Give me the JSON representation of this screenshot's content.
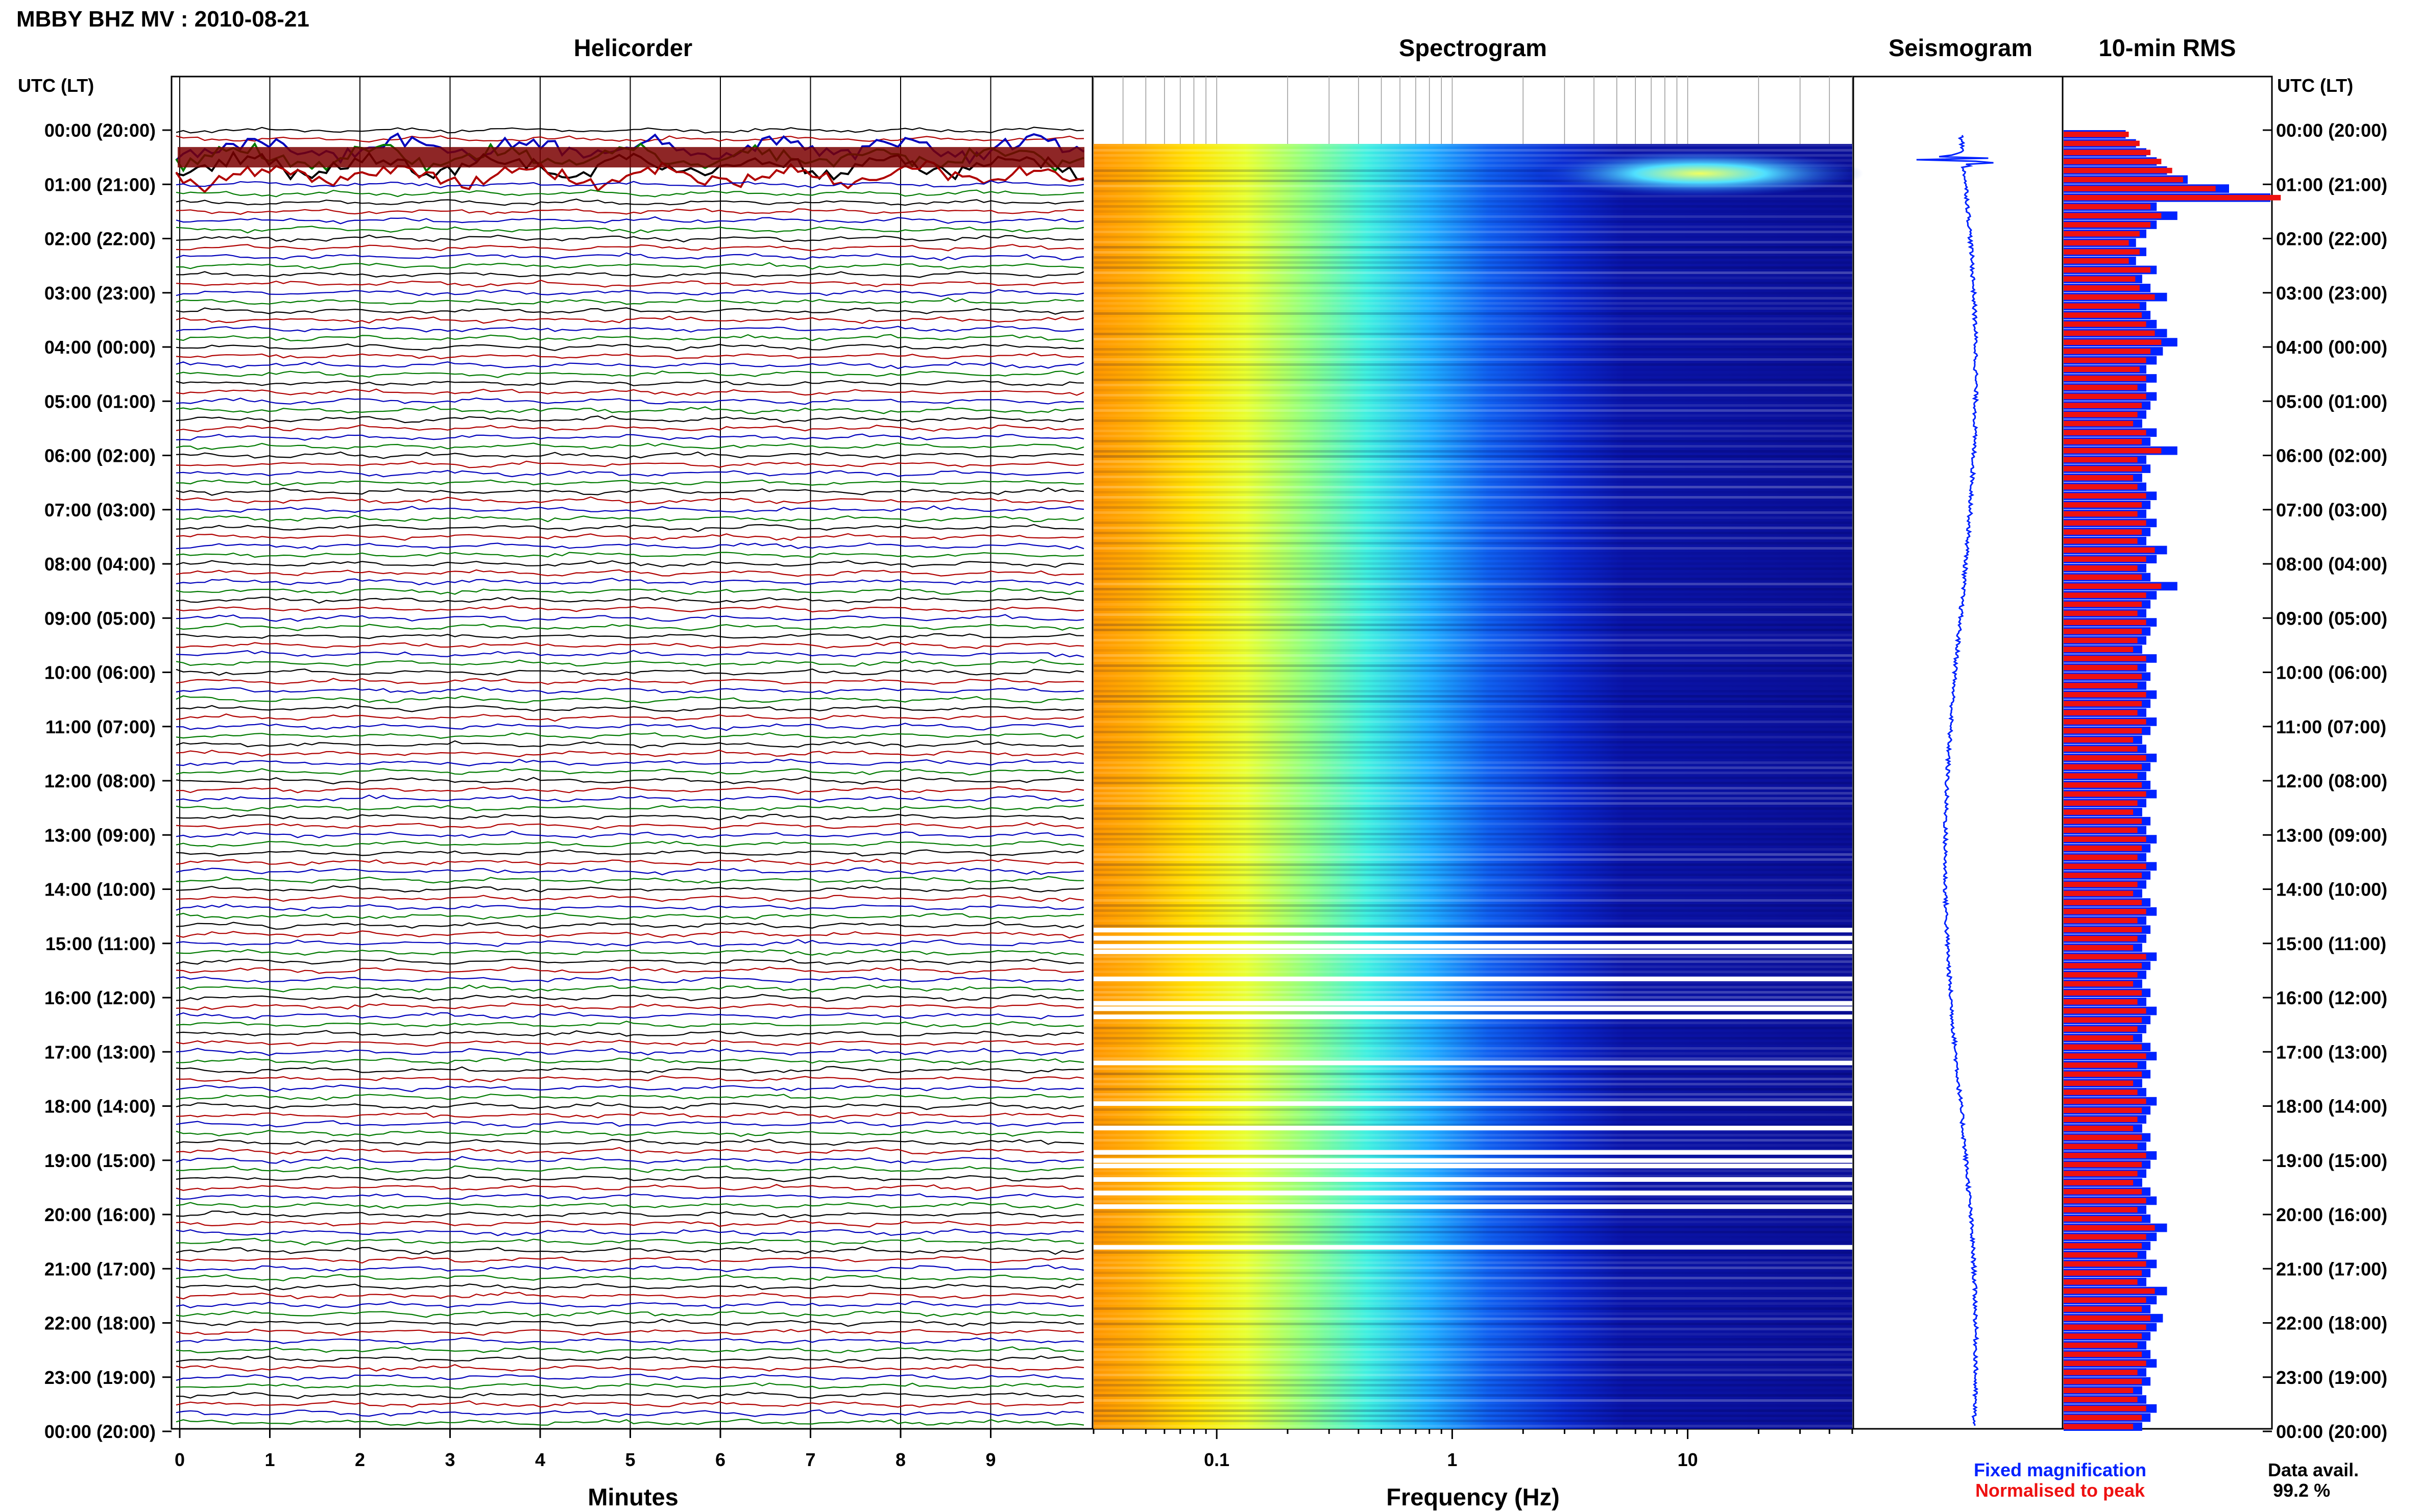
{
  "title": "MBBY BHZ MV : 2010-08-21",
  "panels": {
    "helicorder": "Helicorder",
    "spectrogram": "Spectrogram",
    "seismogram": "Seismogram",
    "rms": "10-min RMS"
  },
  "time_axis_label": "UTC (LT)",
  "time_labels": [
    "00:00 (20:00)",
    "01:00 (21:00)",
    "02:00 (22:00)",
    "03:00 (23:00)",
    "04:00 (00:00)",
    "05:00 (01:00)",
    "06:00 (02:00)",
    "07:00 (03:00)",
    "08:00 (04:00)",
    "09:00 (05:00)",
    "10:00 (06:00)",
    "11:00 (07:00)",
    "12:00 (08:00)",
    "13:00 (09:00)",
    "14:00 (10:00)",
    "15:00 (11:00)",
    "16:00 (12:00)",
    "17:00 (13:00)",
    "18:00 (14:00)",
    "19:00 (15:00)",
    "20:00 (16:00)",
    "21:00 (17:00)",
    "22:00 (18:00)",
    "23:00 (19:00)",
    "00:00 (20:00)"
  ],
  "colors": {
    "trace_cycle": [
      "#000000",
      "#b00000",
      "#0000bb",
      "#007a00"
    ],
    "fixed": "#0022ff",
    "normalised": "#ee1111",
    "gap": "#ffffff"
  },
  "chart_data": [
    {
      "type": "line",
      "name": "helicorder",
      "title": "Helicorder",
      "xlabel": "Minutes",
      "x_ticks": [
        0,
        1,
        2,
        3,
        4,
        5,
        6,
        7,
        8,
        9
      ],
      "xlim": [
        0,
        10
      ],
      "lines_per_hour": 6,
      "lines": 144,
      "event_hour": 0.6
    },
    {
      "type": "heatmap",
      "name": "spectrogram",
      "title": "Spectrogram",
      "xlabel": "Frequency (Hz)",
      "x_scale": "log",
      "x_ticks": [
        0.1,
        1,
        10
      ],
      "xlim": [
        0.03,
        50
      ],
      "gap_hours": [
        0.0,
        14.75,
        14.9,
        15.05,
        15.15,
        15.65,
        16.1,
        16.2,
        16.35,
        17.2,
        17.95,
        18.4,
        18.85,
        19.0,
        19.1,
        19.35,
        19.6,
        19.85,
        20.6
      ]
    },
    {
      "type": "line",
      "name": "seismogram",
      "title": "Seismogram",
      "event_hour": 0.55
    },
    {
      "type": "bar",
      "name": "rms",
      "title": "10-min RMS",
      "series": [
        {
          "name": "Fixed magnification",
          "values": [
            0.3,
            0.35,
            0.4,
            0.45,
            0.5,
            0.6,
            0.8,
            1.0,
            0.45,
            0.55,
            0.45,
            0.4,
            0.35,
            0.4,
            0.35,
            0.45,
            0.38,
            0.42,
            0.5,
            0.4,
            0.42,
            0.45,
            0.5,
            0.55,
            0.48,
            0.45,
            0.4,
            0.45,
            0.4,
            0.45,
            0.42,
            0.4,
            0.38,
            0.45,
            0.42,
            0.55,
            0.4,
            0.42,
            0.38,
            0.4,
            0.45,
            0.42,
            0.4,
            0.45,
            0.42,
            0.4,
            0.5,
            0.45,
            0.4,
            0.42,
            0.55,
            0.45,
            0.42,
            0.4,
            0.45,
            0.42,
            0.4,
            0.38,
            0.45,
            0.4,
            0.42,
            0.4,
            0.45,
            0.42,
            0.4,
            0.45,
            0.42,
            0.38,
            0.4,
            0.45,
            0.42,
            0.4,
            0.42,
            0.45,
            0.4,
            0.38,
            0.42,
            0.4,
            0.45,
            0.42,
            0.4,
            0.45,
            0.42,
            0.4,
            0.38,
            0.42,
            0.45,
            0.4,
            0.42,
            0.4,
            0.38,
            0.45,
            0.42,
            0.4,
            0.38,
            0.42,
            0.4,
            0.45,
            0.42,
            0.4,
            0.38,
            0.42,
            0.45,
            0.4,
            0.42,
            0.38,
            0.4,
            0.45,
            0.42,
            0.4,
            0.38,
            0.42,
            0.4,
            0.45,
            0.42,
            0.4,
            0.38,
            0.42,
            0.45,
            0.4,
            0.42,
            0.5,
            0.45,
            0.42,
            0.4,
            0.45,
            0.42,
            0.4,
            0.5,
            0.45,
            0.42,
            0.48,
            0.45,
            0.42,
            0.4,
            0.42,
            0.45,
            0.4,
            0.42,
            0.38,
            0.4,
            0.45,
            0.42,
            0.38
          ]
        },
        {
          "name": "Normalised to peak",
          "values": [
            0.3,
            0.35,
            0.4,
            0.45,
            0.5,
            0.55,
            0.7,
            1.0,
            0.4,
            0.45,
            0.4,
            0.35,
            0.3,
            0.35,
            0.3,
            0.4,
            0.33,
            0.35,
            0.42,
            0.35,
            0.36,
            0.38,
            0.42,
            0.45,
            0.4,
            0.38,
            0.35,
            0.38,
            0.34,
            0.38,
            0.36,
            0.34,
            0.32,
            0.38,
            0.36,
            0.45,
            0.34,
            0.36,
            0.32,
            0.34,
            0.38,
            0.36,
            0.34,
            0.38,
            0.36,
            0.34,
            0.42,
            0.38,
            0.34,
            0.36,
            0.45,
            0.38,
            0.36,
            0.34,
            0.38,
            0.36,
            0.34,
            0.32,
            0.38,
            0.34,
            0.36,
            0.34,
            0.38,
            0.36,
            0.34,
            0.38,
            0.36,
            0.32,
            0.34,
            0.38,
            0.36,
            0.34,
            0.36,
            0.38,
            0.34,
            0.32,
            0.36,
            0.34,
            0.38,
            0.36,
            0.34,
            0.38,
            0.36,
            0.34,
            0.32,
            0.36,
            0.38,
            0.34,
            0.36,
            0.34,
            0.32,
            0.38,
            0.36,
            0.34,
            0.32,
            0.36,
            0.34,
            0.38,
            0.36,
            0.34,
            0.32,
            0.36,
            0.38,
            0.34,
            0.36,
            0.32,
            0.34,
            0.38,
            0.36,
            0.34,
            0.32,
            0.36,
            0.34,
            0.38,
            0.36,
            0.34,
            0.32,
            0.36,
            0.38,
            0.34,
            0.36,
            0.42,
            0.38,
            0.36,
            0.34,
            0.38,
            0.36,
            0.34,
            0.42,
            0.38,
            0.36,
            0.4,
            0.38,
            0.36,
            0.34,
            0.36,
            0.38,
            0.34,
            0.36,
            0.32,
            0.34,
            0.38,
            0.36,
            0.32
          ]
        }
      ]
    }
  ],
  "legend": {
    "fixed": "Fixed magnification",
    "normalised": "Normalised to peak"
  },
  "data_availability": {
    "label": "Data avail.",
    "value": "99.2 %"
  }
}
